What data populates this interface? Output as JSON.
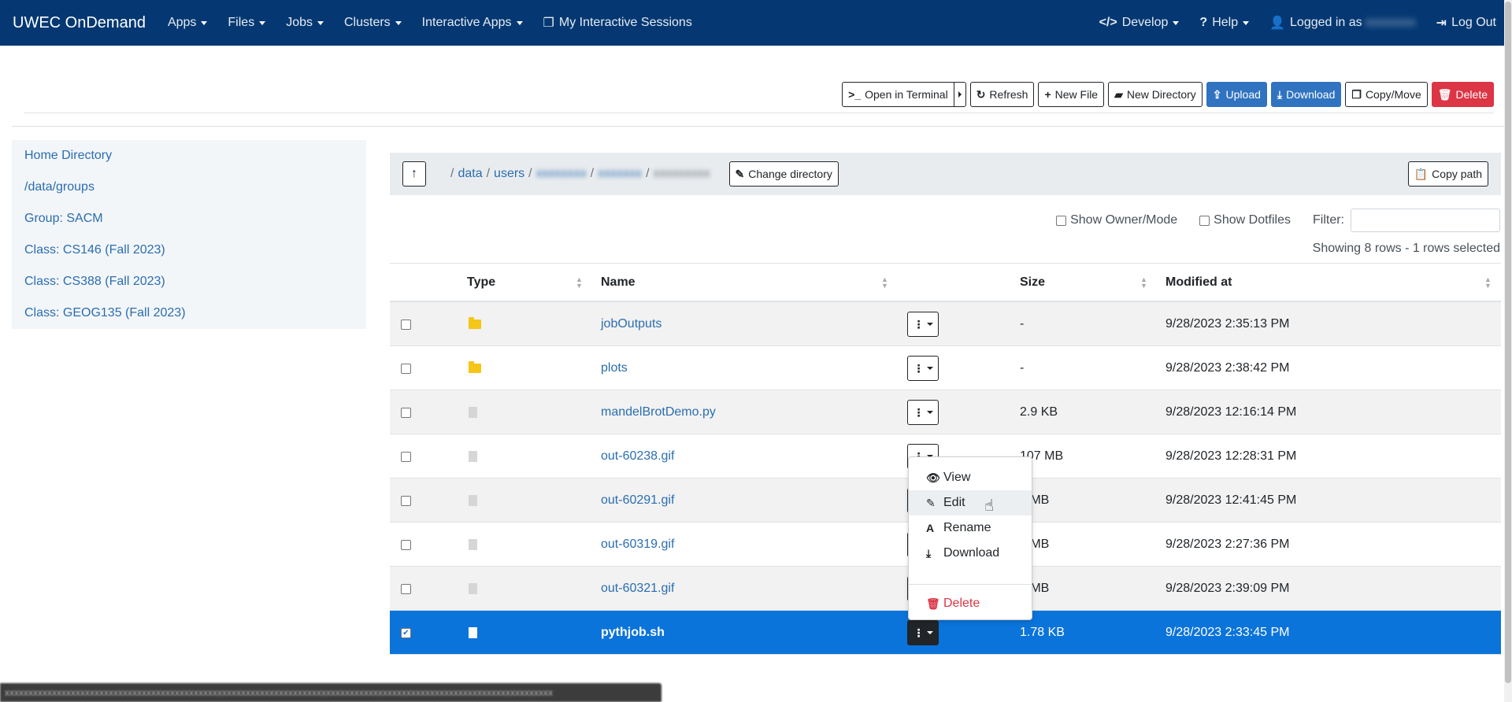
{
  "navbar": {
    "brand": "UWEC OnDemand",
    "items": [
      "Apps",
      "Files",
      "Jobs",
      "Clusters",
      "Interactive Apps"
    ],
    "sessions": "My Interactive Sessions",
    "develop": "Develop",
    "help": "Help",
    "logged_in": "Logged in as",
    "logout": "Log Out"
  },
  "toolbar": {
    "terminal": "Open in Terminal",
    "refresh": "Refresh",
    "new_file": "New File",
    "new_dir": "New Directory",
    "upload": "Upload",
    "download": "Download",
    "copy_move": "Copy/Move",
    "delete": "Delete"
  },
  "sidebar": {
    "items": [
      "Home Directory",
      "/data/groups",
      "Group: SACM",
      "Class: CS146 (Fall 2023)",
      "Class: CS388 (Fall 2023)",
      "Class: GEOG135 (Fall 2023)"
    ]
  },
  "breadcrumb": {
    "root": "/",
    "data": "data",
    "users": "users",
    "sep": "/",
    "change_dir": "Change directory",
    "copy_path": "Copy path"
  },
  "filters": {
    "owner_mode": "Show Owner/Mode",
    "dotfiles": "Show Dotfiles",
    "filter_label": "Filter:"
  },
  "showing": "Showing 8 rows - 1 rows selected",
  "table": {
    "headers": [
      "Type",
      "Name",
      "Size",
      "Modified at"
    ],
    "rows": [
      {
        "type": "folder",
        "name": "jobOutputs",
        "size": "-",
        "modified": "9/28/2023 2:35:13 PM",
        "selected": false
      },
      {
        "type": "folder",
        "name": "plots",
        "size": "-",
        "modified": "9/28/2023 2:38:42 PM",
        "selected": false
      },
      {
        "type": "file",
        "name": "mandelBrotDemo.py",
        "size": "2.9 KB",
        "modified": "9/28/2023 12:16:14 PM",
        "selected": false
      },
      {
        "type": "file",
        "name": "out-60238.gif",
        "size": "107 MB",
        "modified": "9/28/2023 12:28:31 PM",
        "selected": false
      },
      {
        "type": "file",
        "name": "out-60291.gif",
        "size": "1 MB",
        "modified": "9/28/2023 12:41:45 PM",
        "selected": false
      },
      {
        "type": "file",
        "name": "out-60319.gif",
        "size": "1 MB",
        "modified": "9/28/2023 2:27:36 PM",
        "selected": false
      },
      {
        "type": "file",
        "name": "out-60321.gif",
        "size": "7 MB",
        "modified": "9/28/2023 2:39:09 PM",
        "selected": false
      },
      {
        "type": "file",
        "name": "pythjob.sh",
        "size": "1.78 KB",
        "modified": "9/28/2023 2:33:45 PM",
        "selected": true
      }
    ]
  },
  "dropdown": {
    "view": "View",
    "edit": "Edit",
    "rename": "Rename",
    "download": "Download",
    "delete": "Delete"
  },
  "colors": {
    "navbar": "#053872",
    "primary": "#3073c0",
    "danger": "#dc3545",
    "selected_row": "#0b74da",
    "folder": "#f5c518"
  }
}
